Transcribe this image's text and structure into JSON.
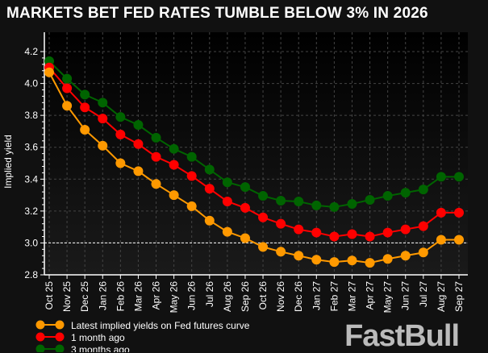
{
  "chart_data": {
    "type": "line",
    "title": "MARKETS BET FED RATES TUMBLE BELOW 3% IN 2026",
    "xlabel": "",
    "ylabel": "Implied yield",
    "ylim": [
      2.8,
      4.2
    ],
    "yticks": [
      "2.8",
      "3.0",
      "3.2",
      "3.4",
      "3.6",
      "3.8",
      "4.0",
      "4.2"
    ],
    "grid": true,
    "reference_line": 3.0,
    "legend_position": "bottom-left",
    "categories": [
      "Oct 25",
      "Nov 25",
      "Dec 25",
      "Jan 26",
      "Feb 26",
      "Mar 26",
      "Apr 26",
      "May 26",
      "Jun 26",
      "Jul 26",
      "Aug 26",
      "Sep 26",
      "Oct 26",
      "Nov 26",
      "Dec 26",
      "Jan 27",
      "Feb 27",
      "Mar 27",
      "Apr 27",
      "May 27",
      "Jun 27",
      "Jul 27",
      "Aug 27",
      "Sep 27"
    ],
    "series": [
      {
        "name": "Latest implied yields on Fed futures curve",
        "color": "#ff9900",
        "values": [
          4.07,
          3.86,
          3.71,
          3.61,
          3.5,
          3.45,
          3.37,
          3.3,
          3.23,
          3.14,
          3.07,
          3.03,
          2.975,
          2.945,
          2.92,
          2.895,
          2.88,
          2.89,
          2.875,
          2.9,
          2.92,
          2.94,
          3.02,
          3.02
        ]
      },
      {
        "name": "1 month ago",
        "color": "#ff0000",
        "values": [
          4.1,
          3.97,
          3.85,
          3.78,
          3.68,
          3.62,
          3.54,
          3.49,
          3.42,
          3.34,
          3.26,
          3.22,
          3.16,
          3.12,
          3.085,
          3.065,
          3.04,
          3.055,
          3.04,
          3.065,
          3.085,
          3.105,
          3.19,
          3.19
        ]
      },
      {
        "name": "3 months ago",
        "color": "#006400",
        "values": [
          4.14,
          4.03,
          3.93,
          3.88,
          3.79,
          3.74,
          3.66,
          3.59,
          3.54,
          3.46,
          3.38,
          3.35,
          3.295,
          3.265,
          3.26,
          3.235,
          3.225,
          3.245,
          3.27,
          3.295,
          3.315,
          3.335,
          3.415,
          3.415
        ]
      }
    ]
  },
  "watermark": "FastBull"
}
